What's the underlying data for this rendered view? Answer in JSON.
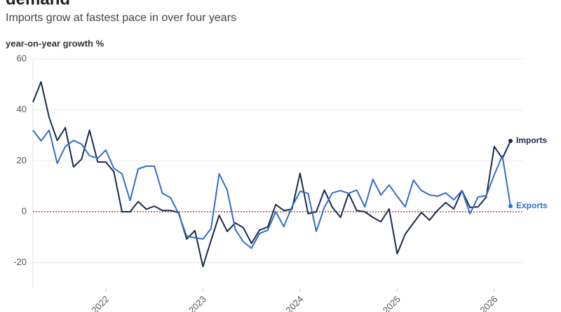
{
  "chart_data": {
    "type": "line",
    "title": "demand",
    "subtitle": "Imports grow at fastest pace in over four years",
    "y_label": "year-on-year growth %",
    "x": [
      2021.25,
      2021.333,
      2021.417,
      2021.5,
      2021.583,
      2021.667,
      2021.75,
      2021.833,
      2021.917,
      2022,
      2022.083,
      2022.167,
      2022.25,
      2022.333,
      2022.417,
      2022.5,
      2022.583,
      2022.667,
      2022.75,
      2022.833,
      2022.917,
      2023,
      2023.083,
      2023.167,
      2023.25,
      2023.333,
      2023.417,
      2023.5,
      2023.583,
      2023.667,
      2023.75,
      2023.833,
      2023.917,
      2024,
      2024.083,
      2024.167,
      2024.25,
      2024.333,
      2024.417,
      2024.5,
      2024.583,
      2024.667,
      2024.75,
      2024.833,
      2024.917,
      2025,
      2025.083,
      2025.167,
      2025.25,
      2025.333,
      2025.417,
      2025.5,
      2025.583,
      2025.667,
      2025.75,
      2025.833,
      2025.917,
      2026,
      2026.083,
      2026.167
    ],
    "series": [
      {
        "name": "Imports",
        "color": "#1b2a4a",
        "values": [
          43,
          51,
          37,
          28,
          33,
          17.6,
          20.6,
          32,
          19.5,
          19.5,
          15.7,
          0,
          0,
          4,
          1,
          2.2,
          0.5,
          0.5,
          -0.3,
          -10.7,
          -7.4,
          -21.5,
          -11.3,
          -1.4,
          -7.7,
          -4.4,
          -6.3,
          -12.4,
          -7.2,
          -6,
          2.8,
          0.5,
          1,
          15.1,
          -0.8,
          0,
          8.5,
          1.7,
          -2.2,
          7.2,
          0.5,
          0,
          -2.2,
          -3.9,
          1.1,
          -16.5,
          -8.8,
          -4.4,
          -0.3,
          -3.3,
          0.6,
          3.6,
          1.1,
          8.3,
          1.7,
          1.9,
          5.8,
          25.6,
          20.9,
          27.8
        ]
      },
      {
        "name": "Exports",
        "color": "#2f6fc6",
        "values": [
          32,
          27.8,
          32,
          19,
          25.6,
          28,
          26.6,
          22,
          21,
          24.2,
          17,
          14.9,
          4.4,
          16.8,
          17.9,
          17.9,
          7.2,
          5.5,
          -0.8,
          -9.6,
          -10.2,
          -10.7,
          -6.6,
          14.9,
          8.5,
          -6.9,
          -11.8,
          -14.3,
          -8.5,
          -7.2,
          0,
          -5.8,
          1.9,
          8,
          7.2,
          -7.7,
          1.7,
          7.4,
          8.3,
          7.2,
          8.5,
          1.9,
          12.7,
          6.6,
          10.5,
          6.1,
          1.9,
          12.4,
          8.3,
          6.6,
          6.1,
          7.4,
          4.7,
          8.3,
          -0.8,
          5.8,
          6.3,
          14.6,
          22,
          2.2
        ]
      }
    ],
    "xlim": [
      2021.25,
      2026.167
    ],
    "xticks": [
      2022,
      2023,
      2024,
      2025,
      2026
    ],
    "ylim": [
      -30,
      60
    ],
    "yticks": [
      -20,
      0,
      20,
      40,
      60
    ],
    "grid": true,
    "zero_line_color": "#a31f1f"
  }
}
